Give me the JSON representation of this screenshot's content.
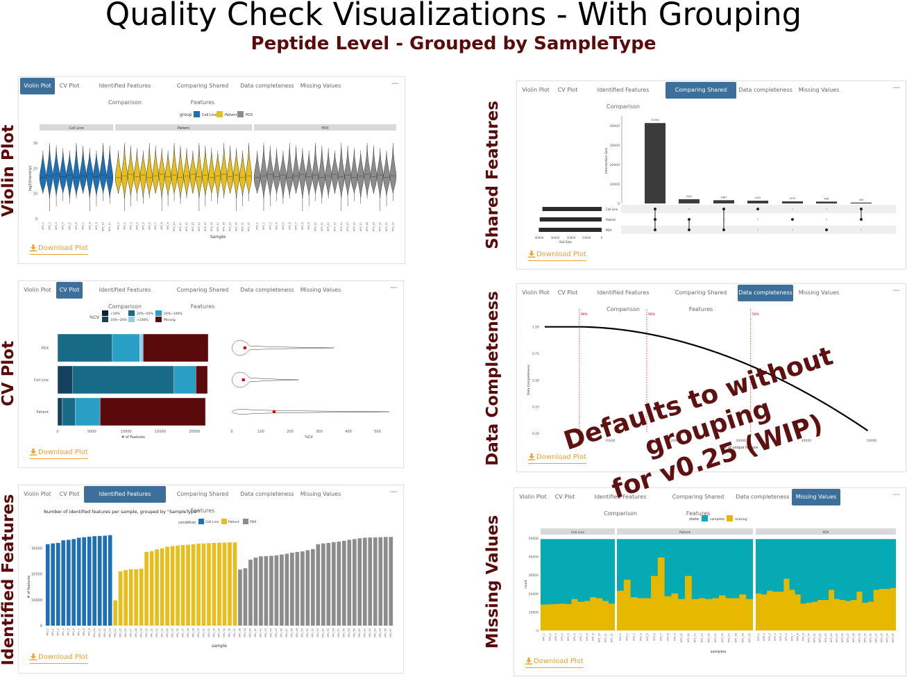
{
  "page": {
    "title": "Quality Check Visualizations - With Grouping",
    "subtitle": "Peptide Level - Grouped by SampleType",
    "overlay_line1": "Defaults to without grouping",
    "overlay_line2": "for v0.25 (WIP)",
    "download_label": "Download Plot",
    "minimize_glyph": "—"
  },
  "side_labels": {
    "violin": "Violin Plot",
    "cv": "CV Plot",
    "identified": "Identified Features",
    "shared": "Shared Features",
    "completeness": "Data Completeness",
    "missing": "Missing Values"
  },
  "tabs": [
    "Violin Plot",
    "CV Plot",
    "Identified Features Comparison",
    "Comparing Shared Features",
    "Data completeness",
    "Missing Values"
  ],
  "colors": {
    "cell_line": "#1f6fb5",
    "patient": "#e6be1e",
    "pdx": "#8c8c8c",
    "accent": "#3c6f99",
    "maroon": "#5a0a0a",
    "download": "#f0a030",
    "complete": "#06aab4",
    "missing": "#e6b800"
  },
  "chart_data": [
    {
      "id": "violin",
      "type": "violin",
      "legend_title": "group",
      "legend": [
        "Cell Line",
        "Patient",
        "PDX"
      ],
      "facets": [
        "Cell Line",
        "Patient",
        "PDX"
      ],
      "xlabel": "Sample",
      "ylabel": "log2(Intensity)",
      "yticks": [
        0,
        10,
        20,
        30
      ],
      "ylim": [
        0,
        33
      ],
      "counts": [
        11,
        22,
        22
      ],
      "median": 17
    },
    {
      "id": "cv",
      "type": "bar",
      "legend_title": "%CV",
      "legend": [
        "<10%",
        "10%~20%",
        "20%~50%",
        "50%~100%",
        ">100%",
        "Missing"
      ],
      "legend_colors": [
        "#0c2233",
        "#14425e",
        "#176b87",
        "#2a9fc5",
        "#90cfe8",
        "#5a0a0a"
      ],
      "categories": [
        "PDX",
        "Cell Line",
        "Patient"
      ],
      "stacks": [
        [
          0,
          0,
          8000,
          4000,
          500,
          9500
        ],
        [
          0,
          2200,
          14800,
          3200,
          0,
          1700
        ],
        [
          0,
          700,
          1900,
          3600,
          0,
          15400
        ]
      ],
      "xlabel": "# of Features",
      "xticks": [
        0,
        5000,
        10000,
        15000,
        20000
      ],
      "violin_xlabel": "%CV",
      "violin_xticks": [
        0,
        100,
        200,
        300,
        400,
        500
      ],
      "violin_means": [
        45,
        40,
        145
      ]
    },
    {
      "id": "identified",
      "type": "bar",
      "title": "Number of identified features per sample, grouped by \"SampleType\"",
      "legend_title": "condition",
      "legend": [
        "Cell Line",
        "Patient",
        "PDX"
      ],
      "xlabel": "sample",
      "ylabel": "# of features",
      "yticks": [
        0,
        10000,
        20000,
        30000
      ],
      "ylim": [
        0,
        36000
      ],
      "values": {
        "cell_line": [
          31500,
          31800,
          32000,
          33000,
          33200,
          33500,
          34000,
          34200,
          34400,
          34600,
          34700,
          34800,
          35000
        ],
        "patient": [
          9800,
          21000,
          21500,
          21800,
          21800,
          22000,
          28500,
          28800,
          29500,
          29900,
          30500,
          30800,
          31000,
          31200,
          31300,
          31500,
          31700,
          31800,
          31900,
          32000,
          32100,
          32100,
          32200,
          32200
        ],
        "pdx": [
          21700,
          22200,
          25500,
          26300,
          26800,
          26900,
          27000,
          27200,
          27500,
          27800,
          28200,
          28500,
          28700,
          29200,
          29600,
          31500,
          31800,
          32000,
          32300,
          32500,
          32800,
          33200,
          33500,
          33800,
          34000,
          34100,
          34100,
          34200,
          34300,
          34300
        ]
      }
    },
    {
      "id": "shared",
      "type": "bar",
      "ylabel": "Intersection Size",
      "yticks": [
        0,
        10000,
        20000,
        30000,
        40000
      ],
      "ylim": [
        0,
        45000
      ],
      "values": [
        41356,
        2181,
        1667,
        1432,
        1075,
        956,
        430
      ],
      "sets": [
        "Cell Line",
        "Patient",
        "PDX"
      ],
      "set_sizes": [
        33000,
        34500,
        35000
      ],
      "set_xlabel": "Set Size",
      "set_xticks": [
        40000,
        30000,
        20000,
        10000,
        0
      ]
    },
    {
      "id": "completeness",
      "type": "line",
      "xlabel": "# of unique feature",
      "ylabel": "Data Completeness",
      "xticks": [
        10000,
        20000,
        30000,
        40000,
        50000
      ],
      "yticks": [
        0.0,
        0.25,
        0.5,
        0.75,
        1.0
      ],
      "thresholds": [
        {
          "label": "99%",
          "x": 5300
        },
        {
          "label": "90%",
          "x": 15600
        },
        {
          "label": "50%",
          "x": 31500
        }
      ]
    },
    {
      "id": "missing",
      "type": "area",
      "legend_title": "state",
      "legend": [
        "complete",
        "missing"
      ],
      "facets": [
        "Cell Line",
        "Patient",
        "PDX"
      ],
      "xlabel": "samples",
      "ylabel": "count",
      "yticks": [
        0,
        10000,
        20000,
        30000,
        40000,
        50000
      ],
      "ylim": [
        0,
        50000
      ],
      "total": 49500,
      "missing": {
        "cell_line": [
          14000,
          14200,
          14300,
          14500,
          14300,
          17000,
          15500,
          16000,
          18000,
          17500,
          16000,
          14500
        ],
        "patient": [
          21500,
          27500,
          18000,
          17500,
          17500,
          29500,
          39500,
          18500,
          20000,
          17000,
          29500,
          17000,
          17500,
          17000,
          17500,
          19000,
          17500,
          17500,
          19500,
          17000
        ],
        "pdx": [
          20000,
          19500,
          21500,
          21000,
          21000,
          28000,
          22000,
          19500,
          14500,
          15000,
          15500,
          16500,
          16500,
          22000,
          17000,
          16500,
          16000,
          16500,
          21000,
          15000,
          15500,
          22000,
          22500,
          22500,
          23000
        ]
      }
    }
  ]
}
